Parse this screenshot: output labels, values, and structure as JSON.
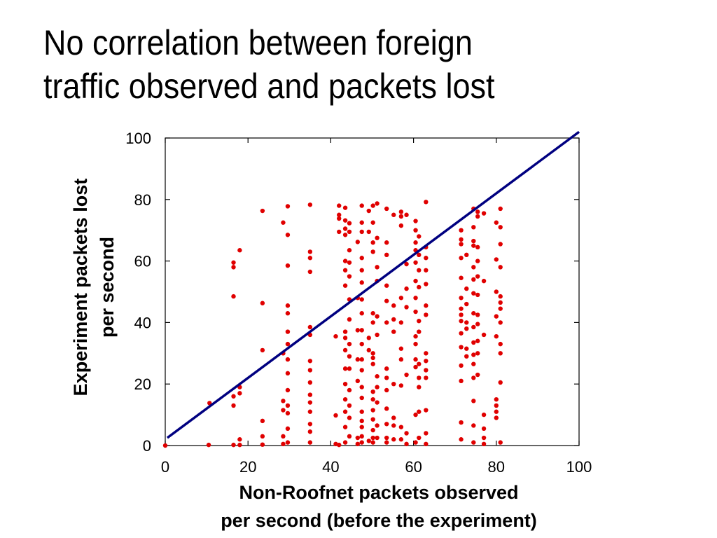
{
  "slide": {
    "title_line1": "No correlation between foreign",
    "title_line2": "traffic observed and packets lost"
  },
  "chart_data": {
    "type": "scatter",
    "xlabel_line1": "Non-Roofnet packets observed",
    "xlabel_line2": "per second (before the experiment)",
    "ylabel_line1": "Experiment packets lost",
    "ylabel_line2": "per second",
    "xlim": [
      0,
      100
    ],
    "ylim": [
      0,
      100
    ],
    "xticks": [
      "0",
      "20",
      "40",
      "60",
      "80",
      "100"
    ],
    "yticks": [
      "0",
      "20",
      "40",
      "60",
      "80",
      "100"
    ],
    "grid": false,
    "point_color": "#e00000",
    "line_color": "#000080",
    "reference_line": {
      "x": [
        0.5,
        100
      ],
      "y": [
        2.5,
        102
      ]
    },
    "points": [
      [
        0,
        0
      ],
      [
        10.5,
        0.2
      ],
      [
        10.7,
        13.8
      ],
      [
        16.5,
        59.5
      ],
      [
        16.5,
        58
      ],
      [
        16.5,
        48.5
      ],
      [
        16.5,
        16
      ],
      [
        16.5,
        13
      ],
      [
        16.5,
        0.2
      ],
      [
        18,
        63.5
      ],
      [
        18,
        17
      ],
      [
        18,
        19
      ],
      [
        18,
        2
      ],
      [
        18,
        0.2
      ],
      [
        23.5,
        76.3
      ],
      [
        23.5,
        46.3
      ],
      [
        23.5,
        31
      ],
      [
        23.5,
        8
      ],
      [
        23.5,
        3
      ],
      [
        23.5,
        0.3
      ],
      [
        28.5,
        72.5
      ],
      [
        28.5,
        30
      ],
      [
        28.5,
        14.5
      ],
      [
        28.5,
        11.5
      ],
      [
        28.5,
        3
      ],
      [
        28.5,
        0.5
      ],
      [
        29.6,
        77.8
      ],
      [
        29.6,
        68.5
      ],
      [
        29.6,
        58.5
      ],
      [
        29.6,
        45.5
      ],
      [
        29.6,
        43
      ],
      [
        29.6,
        37
      ],
      [
        29.6,
        33
      ],
      [
        29.6,
        28
      ],
      [
        29.6,
        23.5
      ],
      [
        29.6,
        18
      ],
      [
        29.6,
        13
      ],
      [
        29.6,
        10.5
      ],
      [
        29.6,
        5.5
      ],
      [
        29.6,
        1
      ],
      [
        35,
        78.3
      ],
      [
        35,
        63
      ],
      [
        35,
        61
      ],
      [
        35,
        56.5
      ],
      [
        35,
        38.5
      ],
      [
        35,
        36
      ],
      [
        35,
        27.5
      ],
      [
        35,
        24.5
      ],
      [
        35,
        20.5
      ],
      [
        35,
        16.5
      ],
      [
        35,
        14
      ],
      [
        35,
        11
      ],
      [
        35,
        7
      ],
      [
        35,
        4.5
      ],
      [
        35,
        1
      ],
      [
        41.2,
        35.5
      ],
      [
        41.2,
        9.8
      ],
      [
        41.2,
        0.5
      ],
      [
        42,
        78
      ],
      [
        42,
        75
      ],
      [
        42,
        73.8
      ],
      [
        42,
        69.5
      ],
      [
        42,
        0.2
      ],
      [
        43.5,
        77.3
      ],
      [
        43.5,
        73.2
      ],
      [
        43.5,
        70.5
      ],
      [
        43.5,
        68.5
      ],
      [
        43.5,
        60
      ],
      [
        43.5,
        57
      ],
      [
        43.5,
        52
      ],
      [
        43.5,
        37
      ],
      [
        43.5,
        35
      ],
      [
        43.5,
        31
      ],
      [
        43.5,
        25
      ],
      [
        43.5,
        20
      ],
      [
        43.5,
        15
      ],
      [
        43.5,
        11
      ],
      [
        43.5,
        6
      ],
      [
        43.5,
        1
      ],
      [
        44.5,
        72.3
      ],
      [
        44.5,
        69.5
      ],
      [
        44.5,
        63.5
      ],
      [
        44.5,
        59.5
      ],
      [
        44.5,
        55
      ],
      [
        44.5,
        47.5
      ],
      [
        44.5,
        41
      ],
      [
        44.5,
        33
      ],
      [
        44.5,
        29
      ],
      [
        44.5,
        25
      ],
      [
        44.5,
        18
      ],
      [
        44.5,
        13
      ],
      [
        44.5,
        9
      ],
      [
        44.5,
        3
      ],
      [
        46.5,
        66.2
      ],
      [
        46.5,
        48
      ],
      [
        46.5,
        37.5
      ],
      [
        46.5,
        28
      ],
      [
        46.5,
        21
      ],
      [
        46.5,
        2.5
      ],
      [
        46.5,
        0.5
      ],
      [
        47.5,
        78
      ],
      [
        47.5,
        72.5
      ],
      [
        47.5,
        69.5
      ],
      [
        47.5,
        61
      ],
      [
        47.5,
        57
      ],
      [
        47.5,
        53
      ],
      [
        47.5,
        47.5
      ],
      [
        47.5,
        43
      ],
      [
        47.5,
        37.5
      ],
      [
        47.5,
        33
      ],
      [
        47.5,
        28
      ],
      [
        47.5,
        24.5
      ],
      [
        47.5,
        19
      ],
      [
        47.5,
        15.5
      ],
      [
        47.5,
        11
      ],
      [
        47.5,
        8
      ],
      [
        47.5,
        6
      ],
      [
        47.5,
        3
      ],
      [
        47.5,
        1
      ],
      [
        49.2,
        76.3
      ],
      [
        49.2,
        69.5
      ],
      [
        49.2,
        35
      ],
      [
        49.2,
        31
      ],
      [
        49.2,
        1.5
      ],
      [
        50.2,
        78
      ],
      [
        50.2,
        72.5
      ],
      [
        50.2,
        66
      ],
      [
        50.2,
        63
      ],
      [
        50.2,
        43
      ],
      [
        50.2,
        40
      ],
      [
        50.2,
        30
      ],
      [
        50.2,
        28.5
      ],
      [
        50.2,
        26.5
      ],
      [
        50.2,
        17.5
      ],
      [
        50.2,
        15
      ],
      [
        50.2,
        11.5
      ],
      [
        50.2,
        8.5
      ],
      [
        50.2,
        5
      ],
      [
        50.2,
        2.5
      ],
      [
        50.2,
        1
      ],
      [
        51.2,
        78.7
      ],
      [
        51.2,
        67.5
      ],
      [
        51.2,
        58
      ],
      [
        51.2,
        53.5
      ],
      [
        51.2,
        42
      ],
      [
        51.2,
        36
      ],
      [
        51.2,
        22.5
      ],
      [
        51.2,
        19
      ],
      [
        51.2,
        14
      ],
      [
        51.2,
        6.5
      ],
      [
        51.2,
        2.5
      ],
      [
        53.5,
        77
      ],
      [
        53.5,
        66
      ],
      [
        53.5,
        62
      ],
      [
        53.5,
        52
      ],
      [
        53.5,
        47
      ],
      [
        53.5,
        40
      ],
      [
        53.5,
        25
      ],
      [
        53.5,
        22
      ],
      [
        53.5,
        18
      ],
      [
        53.5,
        12
      ],
      [
        53.5,
        7
      ],
      [
        53.5,
        2.5
      ],
      [
        53.5,
        1
      ],
      [
        55.2,
        75
      ],
      [
        55.2,
        45.5
      ],
      [
        55.2,
        41
      ],
      [
        55.2,
        37
      ],
      [
        55.2,
        20
      ],
      [
        55.2,
        9
      ],
      [
        55.2,
        6.5
      ],
      [
        55.2,
        2
      ],
      [
        57,
        76
      ],
      [
        57,
        74.5
      ],
      [
        57,
        71.5
      ],
      [
        57,
        48
      ],
      [
        57,
        40
      ],
      [
        57,
        31.5
      ],
      [
        57,
        28
      ],
      [
        57,
        19.5
      ],
      [
        57,
        6
      ],
      [
        57,
        2
      ],
      [
        58.3,
        75
      ],
      [
        58.3,
        59
      ],
      [
        58.3,
        51
      ],
      [
        58.3,
        45
      ],
      [
        58.3,
        23
      ],
      [
        58.3,
        4
      ],
      [
        58.3,
        0.5
      ],
      [
        60.5,
        73
      ],
      [
        60.5,
        70
      ],
      [
        60.5,
        66
      ],
      [
        60.5,
        63.5
      ],
      [
        60.5,
        59.5
      ],
      [
        60.5,
        53.5
      ],
      [
        60.5,
        48
      ],
      [
        60.5,
        43.5
      ],
      [
        60.5,
        35.5
      ],
      [
        60.5,
        33
      ],
      [
        60.5,
        28
      ],
      [
        60.5,
        25.5
      ],
      [
        60.5,
        10
      ],
      [
        60.5,
        1
      ],
      [
        61.3,
        68
      ],
      [
        61.3,
        62
      ],
      [
        61.3,
        57
      ],
      [
        61.3,
        51.5
      ],
      [
        61.3,
        40.5
      ],
      [
        61.3,
        37
      ],
      [
        61.3,
        26.5
      ],
      [
        61.3,
        22
      ],
      [
        61.3,
        19
      ],
      [
        61.3,
        11
      ],
      [
        61.3,
        2.5
      ],
      [
        63,
        79.2
      ],
      [
        63,
        64.5
      ],
      [
        63,
        61
      ],
      [
        63,
        57
      ],
      [
        63,
        52.5
      ],
      [
        63,
        45.5
      ],
      [
        63,
        42.5
      ],
      [
        63,
        30
      ],
      [
        63,
        27.5
      ],
      [
        63,
        24.5
      ],
      [
        63,
        22
      ],
      [
        63,
        11.5
      ],
      [
        63,
        4
      ],
      [
        63,
        0.5
      ],
      [
        71.5,
        70
      ],
      [
        71.5,
        67
      ],
      [
        71.5,
        65.5
      ],
      [
        71.5,
        61
      ],
      [
        71.5,
        54.5
      ],
      [
        71.5,
        48
      ],
      [
        71.5,
        44.5
      ],
      [
        71.5,
        42.5
      ],
      [
        71.5,
        40.5
      ],
      [
        71.5,
        36.5
      ],
      [
        71.5,
        32
      ],
      [
        71.5,
        26
      ],
      [
        71.5,
        21
      ],
      [
        71.5,
        7.5
      ],
      [
        71.5,
        2
      ],
      [
        72.8,
        62
      ],
      [
        72.8,
        51
      ],
      [
        72.8,
        46
      ],
      [
        72.8,
        40
      ],
      [
        72.8,
        38
      ],
      [
        72.8,
        31.5
      ],
      [
        72.8,
        29
      ],
      [
        74.5,
        77
      ],
      [
        74.5,
        71
      ],
      [
        74.5,
        66.5
      ],
      [
        74.5,
        65
      ],
      [
        74.5,
        58
      ],
      [
        74.5,
        54
      ],
      [
        74.5,
        49.5
      ],
      [
        74.5,
        43
      ],
      [
        74.5,
        38.5
      ],
      [
        74.5,
        33.5
      ],
      [
        74.5,
        29.5
      ],
      [
        74.5,
        26.5
      ],
      [
        74.5,
        22
      ],
      [
        74.5,
        14.5
      ],
      [
        74.5,
        6.5
      ],
      [
        74.5,
        1
      ],
      [
        75.5,
        76
      ],
      [
        75.5,
        74.5
      ],
      [
        75.5,
        64.5
      ],
      [
        75.5,
        60
      ],
      [
        75.5,
        55
      ],
      [
        75.5,
        49
      ],
      [
        75.5,
        42.5
      ],
      [
        75.5,
        39.5
      ],
      [
        75.5,
        34
      ],
      [
        75.5,
        30
      ],
      [
        75.5,
        23
      ],
      [
        77,
        75.5
      ],
      [
        77,
        53.5
      ],
      [
        77,
        36
      ],
      [
        77,
        10
      ],
      [
        77,
        5.5
      ],
      [
        77,
        2.5
      ],
      [
        77,
        0.5
      ],
      [
        80,
        72.5
      ],
      [
        80,
        60.5
      ],
      [
        80,
        50
      ],
      [
        80,
        42
      ],
      [
        80,
        35.5
      ],
      [
        80,
        15
      ],
      [
        80,
        13
      ],
      [
        80,
        11
      ],
      [
        80,
        9
      ],
      [
        81,
        77
      ],
      [
        81,
        71
      ],
      [
        81,
        65.5
      ],
      [
        81,
        58
      ],
      [
        81,
        48.5
      ],
      [
        81,
        46.5
      ],
      [
        81,
        44.5
      ],
      [
        81,
        40
      ],
      [
        81,
        33
      ],
      [
        81,
        30
      ],
      [
        81,
        20.5
      ],
      [
        81,
        1
      ]
    ]
  }
}
